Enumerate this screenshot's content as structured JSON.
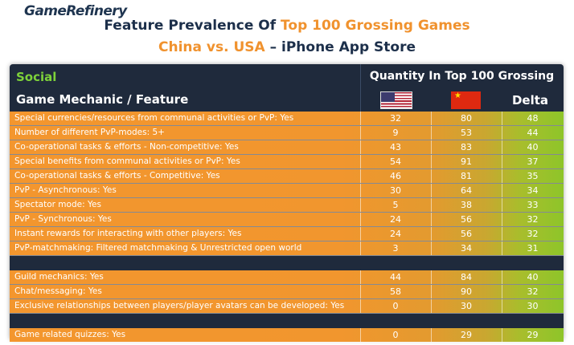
{
  "brand": "GameRefinery",
  "title": {
    "line1_pre": "Feature Prevalence Of ",
    "line1_highlight": "Top 100 Grossing Games",
    "line2_highlight": "China vs. USA",
    "line2_post": " – iPhone App Store"
  },
  "header": {
    "section": "Social",
    "quantity": "Quantity In Top 100 Grossing",
    "feature_col": "Game Mechanic / Feature",
    "delta_col": "Delta"
  },
  "colors": {
    "background": "#1f2a3c",
    "orange": "#f3962e",
    "green": "#8ec52a",
    "title_navy": "#1c2f4a",
    "section_green": "#7ed23a"
  },
  "chart_data": {
    "type": "table",
    "columns": [
      "Game Mechanic / Feature",
      "USA",
      "China",
      "Delta"
    ],
    "groups": [
      {
        "rows": [
          {
            "feature": "Special currencies/resources from communal activities or PvP: Yes",
            "usa": 32,
            "china": 80,
            "delta": 48
          },
          {
            "feature": "Number of different PvP-modes: 5+",
            "usa": 9,
            "china": 53,
            "delta": 44
          },
          {
            "feature": "Co-operational tasks & efforts  - Non-competitive: Yes",
            "usa": 43,
            "china": 83,
            "delta": 40
          },
          {
            "feature": "Special benefits from communal activities or PvP: Yes",
            "usa": 54,
            "china": 91,
            "delta": 37
          },
          {
            "feature": "Co-operational tasks & efforts  - Competitive: Yes",
            "usa": 46,
            "china": 81,
            "delta": 35
          },
          {
            "feature": "PvP - Asynchronous: Yes",
            "usa": 30,
            "china": 64,
            "delta": 34
          },
          {
            "feature": "Spectator mode: Yes",
            "usa": 5,
            "china": 38,
            "delta": 33
          },
          {
            "feature": "PvP - Synchronous: Yes",
            "usa": 24,
            "china": 56,
            "delta": 32
          },
          {
            "feature": "Instant rewards for interacting with other players: Yes",
            "usa": 24,
            "china": 56,
            "delta": 32
          },
          {
            "feature": "PvP-matchmaking: Filtered matchmaking & Unrestricted open world",
            "usa": 3,
            "china": 34,
            "delta": 31
          }
        ]
      },
      {
        "rows": [
          {
            "feature": "Guild mechanics:  Yes",
            "usa": 44,
            "china": 84,
            "delta": 40
          },
          {
            "feature": "Chat/messaging:  Yes",
            "usa": 58,
            "china": 90,
            "delta": 32
          },
          {
            "feature": "Exclusive relationships between players/player avatars can be developed: Yes",
            "usa": 0,
            "china": 30,
            "delta": 30
          }
        ]
      },
      {
        "rows": [
          {
            "feature": "Game related quizzes: Yes",
            "usa": 0,
            "china": 29,
            "delta": 29
          }
        ]
      }
    ]
  }
}
